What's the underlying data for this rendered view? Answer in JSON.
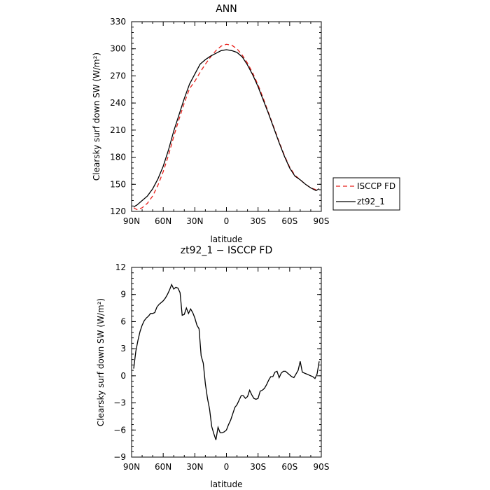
{
  "chart_data": [
    {
      "type": "line",
      "title": "ANN",
      "xlabel": "latitude",
      "ylabel": "Clearsky surf down SW (W/m²)",
      "xlim": [
        90,
        -90
      ],
      "ylim": [
        120,
        330
      ],
      "x_tick_values": [
        90,
        60,
        30,
        0,
        -30,
        -60,
        -90
      ],
      "x_tick_labels": [
        "90N",
        "60N",
        "30N",
        "0",
        "30S",
        "60S",
        "90S"
      ],
      "y_tick_values": [
        120,
        150,
        180,
        210,
        240,
        270,
        300,
        330
      ],
      "y_tick_labels": [
        "120",
        "150",
        "180",
        "210",
        "240",
        "270",
        "300",
        "330"
      ],
      "legend_position": "outside-right",
      "series": [
        {
          "name": "ISCCP FD",
          "color": "#e8211c",
          "dash": "dashed",
          "x": [
            88,
            85,
            80,
            75,
            70,
            65,
            60,
            55,
            50,
            45,
            40,
            35,
            30,
            25,
            20,
            15,
            10,
            5,
            0,
            -5,
            -10,
            -15,
            -20,
            -25,
            -30,
            -35,
            -40,
            -45,
            -50,
            -55,
            -60,
            -65,
            -70,
            -75,
            -80,
            -85,
            -88
          ],
          "y": [
            124,
            122,
            124,
            129,
            137,
            149,
            164,
            182,
            203,
            222,
            240,
            256,
            264,
            274,
            283,
            291,
            298,
            303,
            305,
            304,
            300,
            293,
            284,
            273,
            260,
            245,
            229,
            213,
            197,
            182,
            169,
            160,
            155,
            150,
            146,
            144,
            145
          ]
        },
        {
          "name": "zt92_1",
          "color": "#000000",
          "dash": "solid",
          "x": [
            88,
            85,
            80,
            75,
            70,
            65,
            60,
            55,
            50,
            45,
            40,
            35,
            30,
            25,
            20,
            15,
            10,
            5,
            0,
            -5,
            -10,
            -15,
            -20,
            -25,
            -30,
            -35,
            -40,
            -45,
            -50,
            -55,
            -60,
            -65,
            -70,
            -75,
            -80,
            -85,
            -88
          ],
          "y": [
            125,
            127,
            132,
            137,
            145,
            156,
            170,
            188,
            209,
            227,
            245,
            261,
            272,
            283,
            288,
            292,
            295,
            298,
            299,
            298,
            296,
            291,
            282,
            271,
            258,
            243,
            228,
            212,
            196,
            181,
            168,
            159,
            155,
            150,
            146,
            143,
            145
          ]
        }
      ]
    },
    {
      "type": "line",
      "title": "zt92_1 − ISCCP FD",
      "xlabel": "latitude",
      "ylabel": "Clearsky surf down SW (W/m²)",
      "xlim": [
        90,
        -90
      ],
      "ylim": [
        -9,
        12
      ],
      "x_tick_values": [
        90,
        60,
        30,
        0,
        -30,
        -60,
        -90
      ],
      "x_tick_labels": [
        "90N",
        "60N",
        "30N",
        "0",
        "30S",
        "60S",
        "90S"
      ],
      "y_tick_values": [
        -9,
        -6,
        -3,
        0,
        3,
        6,
        9,
        12
      ],
      "y_tick_labels": [
        "−9",
        "−6",
        "−3",
        "0",
        "3",
        "6",
        "9",
        "12"
      ],
      "series": [
        {
          "color": "#000000",
          "dash": "solid",
          "x": [
            88,
            86,
            84,
            82,
            80,
            78,
            76,
            74,
            72,
            70,
            68,
            66,
            64,
            62,
            60,
            58,
            56,
            54,
            52,
            50,
            48,
            46,
            44,
            42,
            40,
            38,
            36,
            34,
            32,
            30,
            28,
            26,
            24,
            22,
            20,
            18,
            16,
            14,
            12,
            10,
            8,
            6,
            4,
            2,
            0,
            -2,
            -4,
            -6,
            -8,
            -10,
            -12,
            -14,
            -16,
            -18,
            -20,
            -22,
            -24,
            -26,
            -28,
            -30,
            -32,
            -34,
            -36,
            -38,
            -40,
            -42,
            -44,
            -46,
            -48,
            -50,
            -52,
            -54,
            -56,
            -58,
            -60,
            -62,
            -64,
            -66,
            -68,
            -70,
            -72,
            -74,
            -76,
            -78,
            -80,
            -82,
            -84,
            -86,
            -88
          ],
          "y": [
            0.8,
            2.7,
            3.9,
            4.9,
            5.6,
            6.1,
            6.4,
            6.6,
            6.9,
            6.9,
            7.0,
            7.6,
            7.9,
            8.1,
            8.3,
            8.6,
            9.0,
            9.5,
            10.1,
            9.6,
            9.8,
            9.7,
            9.2,
            6.7,
            6.8,
            7.5,
            6.9,
            7.4,
            7.0,
            6.4,
            5.6,
            5.2,
            2.2,
            1.4,
            -0.9,
            -2.5,
            -3.7,
            -5.6,
            -6.4,
            -7.1,
            -5.7,
            -6.3,
            -6.3,
            -6.2,
            -6.0,
            -5.4,
            -4.9,
            -4.2,
            -3.5,
            -3.2,
            -2.7,
            -2.2,
            -2.2,
            -2.5,
            -2.3,
            -1.6,
            -2.1,
            -2.5,
            -2.6,
            -2.5,
            -1.7,
            -1.6,
            -1.4,
            -1.0,
            -0.5,
            -0.1,
            -0.1,
            0.4,
            0.5,
            -0.2,
            0.3,
            0.5,
            0.5,
            0.3,
            0.1,
            -0.1,
            -0.2,
            0.2,
            0.6,
            1.6,
            0.4,
            0.3,
            0.2,
            0.1,
            0.0,
            -0.1,
            -0.3,
            0.2,
            1.6
          ]
        }
      ]
    }
  ]
}
